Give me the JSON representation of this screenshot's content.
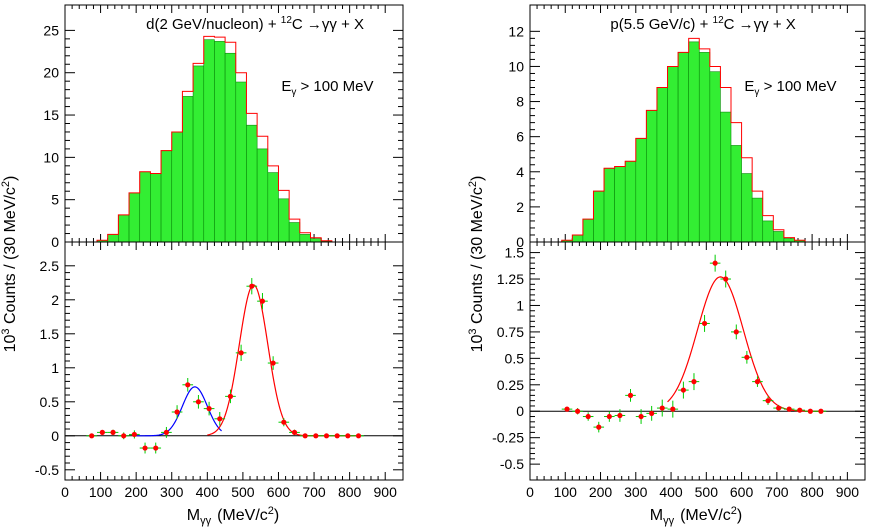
{
  "figure": {
    "ylabel_base": "10",
    "ylabel_exp": "3",
    "ylabel_rest": " Counts / (30 MeV/c",
    "ylabel_sup2": "2",
    "ylabel_close": ")",
    "xlabel_m": "M",
    "xlabel_sub": "γγ",
    "xlabel_units": "(MeV/c",
    "xlabel_sup2": "2",
    "xlabel_close": ")"
  },
  "chart_data": [
    {
      "type": "bar",
      "panel": "left-top",
      "title_parts": [
        "d(2 GeV/nucleon) + ",
        "12",
        "C ",
        "→",
        "γγ + X"
      ],
      "annotation_parts": [
        "E",
        "γ",
        " > 100 MeV"
      ],
      "xlim": [
        0,
        950
      ],
      "ylim": [
        0,
        28
      ],
      "xticks": [
        0,
        100,
        200,
        300,
        400,
        500,
        600,
        700,
        800,
        900
      ],
      "yticks": [
        0,
        5,
        10,
        15,
        20,
        25
      ],
      "bin_edges": [
        0,
        30,
        60,
        90,
        120,
        150,
        180,
        210,
        240,
        270,
        300,
        330,
        360,
        390,
        420,
        450,
        480,
        510,
        540,
        570,
        600,
        630,
        660,
        690,
        720,
        750,
        780,
        810,
        840,
        870,
        900,
        930
      ],
      "series": [
        {
          "name": "",
          "color": "#ff0000",
          "style": "step",
          "values": [
            0,
            0,
            0,
            0.2,
            0.9,
            3.2,
            5.8,
            8.3,
            8.1,
            10.8,
            13.0,
            17.8,
            21.1,
            24.3,
            24.2,
            23.6,
            20.0,
            15.2,
            12.5,
            9.0,
            6.1,
            2.7,
            1.1,
            0.5,
            0.15,
            0,
            0,
            0,
            0,
            0,
            0
          ]
        },
        {
          "name": "",
          "color": "#33ee33",
          "style": "filled",
          "values": [
            0,
            0,
            0,
            0.2,
            0.9,
            3.2,
            5.8,
            8.3,
            8.1,
            10.8,
            13.0,
            17.2,
            20.8,
            23.9,
            23.7,
            22.3,
            18.9,
            13.8,
            11.0,
            8.2,
            5.1,
            2.3,
            0.9,
            0.4,
            0.1,
            0,
            0,
            0,
            0,
            0,
            0
          ]
        }
      ]
    },
    {
      "type": "scatter",
      "panel": "left-bottom",
      "xlim": [
        0,
        950
      ],
      "ylim": [
        -0.65,
        2.85
      ],
      "xticks": [
        0,
        100,
        200,
        300,
        400,
        500,
        600,
        700,
        800,
        900
      ],
      "yticks": [
        -0.5,
        0,
        0.5,
        1,
        1.5,
        2,
        2.5
      ],
      "ytick_labels": [
        "-0.5",
        "0",
        "0.5",
        "1",
        "1.5",
        "2",
        "2.5"
      ],
      "points": {
        "x": [
          75,
          105,
          135,
          165,
          195,
          225,
          255,
          285,
          315,
          345,
          375,
          405,
          435,
          465,
          495,
          525,
          555,
          585,
          615,
          645,
          675,
          705,
          735,
          765,
          795,
          825
        ],
        "y": [
          0,
          0.05,
          0.05,
          0,
          0.02,
          -0.18,
          -0.18,
          0.05,
          0.35,
          0.75,
          0.5,
          0.4,
          0.25,
          0.58,
          1.22,
          2.2,
          1.98,
          1.07,
          0.2,
          0.05,
          0,
          0,
          0,
          0,
          0,
          0
        ],
        "yerr": [
          0.03,
          0.03,
          0.04,
          0.05,
          0.06,
          0.08,
          0.08,
          0.08,
          0.1,
          0.1,
          0.1,
          0.1,
          0.1,
          0.1,
          0.12,
          0.12,
          0.12,
          0.1,
          0.06,
          0.04,
          0.03,
          0.02,
          0.02,
          0.02,
          0.02,
          0.02
        ],
        "color": "#ff0000",
        "error_color": "#00cc00"
      },
      "curves": [
        {
          "name": "",
          "color": "#0000ff",
          "shape": "gaussian",
          "amplitude": 0.72,
          "mean": 365,
          "sigma": 35,
          "xrange": [
            200,
            440
          ]
        },
        {
          "name": "",
          "color": "#ff0000",
          "shape": "gaussian",
          "amplitude": 2.22,
          "mean": 530,
          "sigma": 40,
          "xrange": [
            400,
            830
          ]
        }
      ]
    },
    {
      "type": "bar",
      "panel": "right-top",
      "title_parts": [
        "p(5.5 GeV/c) + ",
        "12",
        "C ",
        "→",
        "γγ + X"
      ],
      "annotation_parts": [
        "E",
        "γ",
        " > 100 MeV"
      ],
      "xlim": [
        0,
        950
      ],
      "ylim": [
        0,
        13.5
      ],
      "xticks": [
        0,
        100,
        200,
        300,
        400,
        500,
        600,
        700,
        800,
        900
      ],
      "yticks": [
        0,
        2,
        4,
        6,
        8,
        10,
        12
      ],
      "bin_edges": [
        0,
        30,
        60,
        90,
        120,
        150,
        180,
        210,
        240,
        270,
        300,
        330,
        360,
        390,
        420,
        450,
        480,
        510,
        540,
        570,
        600,
        630,
        660,
        690,
        720,
        750,
        780,
        810,
        840,
        870,
        900,
        930
      ],
      "series": [
        {
          "name": "",
          "color": "#ff0000",
          "style": "step",
          "values": [
            0,
            0,
            0,
            0.1,
            0.4,
            1.3,
            2.9,
            4.2,
            4.3,
            4.6,
            5.9,
            7.5,
            8.8,
            10.0,
            10.8,
            11.6,
            11.0,
            10.0,
            8.8,
            6.8,
            4.8,
            2.9,
            1.5,
            0.7,
            0.25,
            0.1,
            0,
            0,
            0,
            0,
            0
          ]
        },
        {
          "name": "",
          "color": "#33ee33",
          "style": "filled",
          "values": [
            0,
            0,
            0,
            0.1,
            0.4,
            1.3,
            2.9,
            4.2,
            4.3,
            4.6,
            5.9,
            7.5,
            8.8,
            10.0,
            10.8,
            11.4,
            10.8,
            9.7,
            7.4,
            5.5,
            3.9,
            2.5,
            1.2,
            0.6,
            0.2,
            0.1,
            0,
            0,
            0,
            0,
            0
          ]
        }
      ]
    },
    {
      "type": "scatter",
      "panel": "right-bottom",
      "xlim": [
        0,
        950
      ],
      "ylim": [
        -0.65,
        1.6
      ],
      "xticks": [
        0,
        100,
        200,
        300,
        400,
        500,
        600,
        700,
        800,
        900
      ],
      "yticks": [
        -0.5,
        -0.25,
        0,
        0.25,
        0.5,
        0.75,
        1,
        1.25,
        1.5
      ],
      "ytick_labels": [
        "-0.5",
        "-0.25",
        "0",
        "0.25",
        "0.5",
        "0.75",
        "1",
        "1.25",
        "1.5"
      ],
      "points": {
        "x": [
          105,
          135,
          165,
          195,
          225,
          255,
          285,
          315,
          345,
          375,
          405,
          435,
          465,
          495,
          525,
          555,
          585,
          615,
          645,
          675,
          705,
          735,
          765,
          795,
          825
        ],
        "y": [
          0.02,
          0,
          -0.05,
          -0.15,
          -0.05,
          -0.04,
          0.15,
          -0.05,
          -0.02,
          0.03,
          0.02,
          0.2,
          0.28,
          0.83,
          1.4,
          1.25,
          0.75,
          0.51,
          0.28,
          0.1,
          0.03,
          0.02,
          0.01,
          0,
          0
        ],
        "yerr": [
          0.02,
          0.03,
          0.04,
          0.05,
          0.05,
          0.06,
          0.06,
          0.07,
          0.07,
          0.08,
          0.08,
          0.08,
          0.08,
          0.08,
          0.08,
          0.08,
          0.07,
          0.06,
          0.05,
          0.04,
          0.03,
          0.02,
          0.02,
          0.02,
          0.02
        ],
        "color": "#ff0000",
        "error_color": "#00cc00"
      },
      "curves": [
        {
          "name": "",
          "color": "#ff0000",
          "shape": "gaussian",
          "amplitude": 1.27,
          "mean": 540,
          "sigma": 65,
          "xrange": [
            390,
            830
          ]
        }
      ]
    }
  ]
}
